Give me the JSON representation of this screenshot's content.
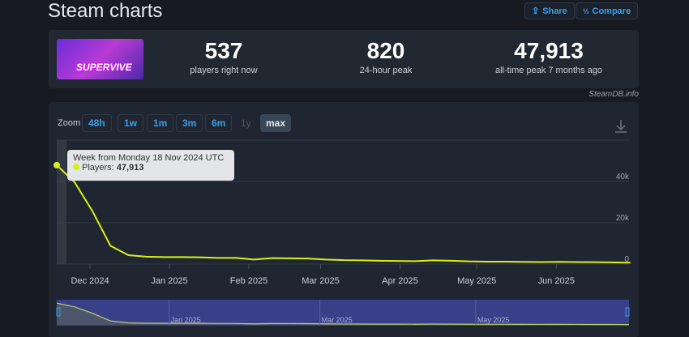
{
  "page": {
    "title": "Steam charts",
    "share": "Share",
    "compare": "Compare",
    "credit": "SteamDB.info"
  },
  "game": {
    "capsule_text": "SUPERVIVE"
  },
  "stats": [
    {
      "value": "537",
      "label": "players right now"
    },
    {
      "value": "820",
      "label": "24-hour peak"
    },
    {
      "value": "47,913",
      "label": "all-time peak 7 months ago"
    }
  ],
  "zoom": {
    "label": "Zoom",
    "options": [
      "48h",
      "1w",
      "1m",
      "3m",
      "6m",
      "1y",
      "max"
    ],
    "active": "max",
    "disabled": [
      "1y"
    ]
  },
  "tooltip": {
    "title": "Week from Monday 18 Nov 2024 UTC",
    "series": "Players:",
    "value": "47,913"
  },
  "colors": {
    "line": "#d4f219",
    "accent": "#3aa0ea",
    "navigator": "#3a3f8a"
  },
  "chart_data": {
    "type": "line",
    "x_start": "2024-11-18",
    "x_interval": "week",
    "values": [
      47913,
      39600,
      25500,
      8800,
      4300,
      3600,
      3400,
      3400,
      3300,
      3000,
      3000,
      2200,
      2900,
      2800,
      2700,
      2200,
      1900,
      1800,
      1600,
      1500,
      1400,
      1800,
      1600,
      1300,
      1200,
      1200,
      1100,
      1000,
      1100,
      1000,
      950,
      850,
      700
    ],
    "xticks": [
      "Dec 2024",
      "Jan 2025",
      "Feb 2025",
      "Mar 2025",
      "Apr 2025",
      "May 2025",
      "Jun 2025"
    ],
    "yticks": [
      "0",
      "20k",
      "40k"
    ],
    "ylim": [
      0,
      60000
    ],
    "grid": true,
    "navigator_ticks": [
      "Jan 2025",
      "Mar 2025",
      "May 2025"
    ]
  }
}
